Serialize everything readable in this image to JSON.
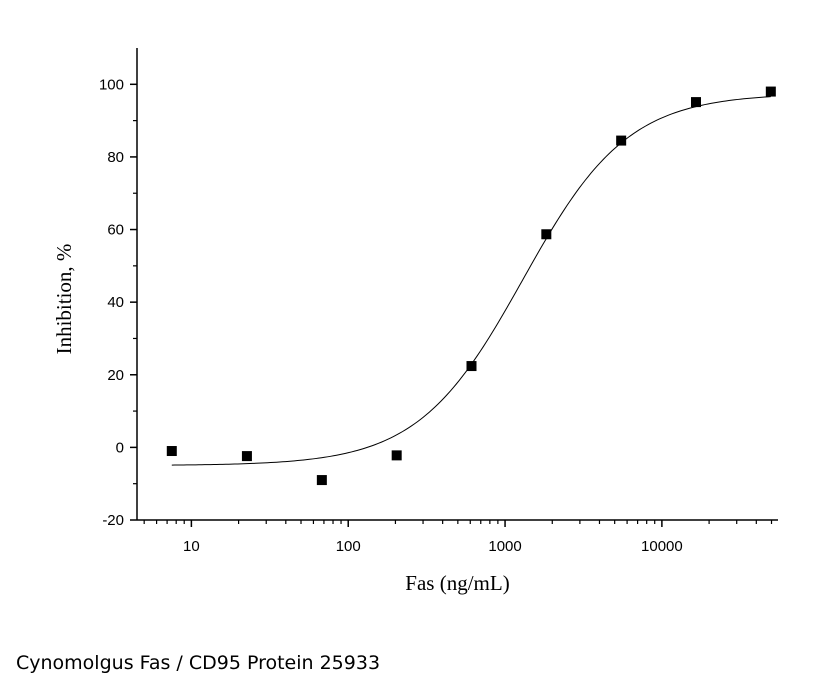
{
  "caption": "Cynomolgus Fas / CD95 Protein 25933",
  "chart_data": {
    "type": "scatter",
    "xlabel": "Fas (ng/mL)",
    "ylabel": "Inhibition, %",
    "xscale": "log",
    "xlim": [
      4.5,
      55000
    ],
    "ylim": [
      -20,
      110
    ],
    "xticks": [
      10,
      100,
      1000,
      10000
    ],
    "xtick_labels": [
      "10",
      "100",
      "1000",
      "10000"
    ],
    "yticks": [
      -20,
      0,
      20,
      40,
      60,
      80,
      100
    ],
    "ytick_labels": [
      "-20",
      "0",
      "20",
      "40",
      "60",
      "80",
      "100"
    ],
    "grid": false,
    "points": {
      "x": [
        7.5,
        22.6,
        67.9,
        203.7,
        611,
        1833,
        5500,
        16500,
        49500
      ],
      "y": [
        -1,
        -2.4,
        -9,
        -2.2,
        22.4,
        58.7,
        84.5,
        95.1,
        98
      ]
    },
    "fit": {
      "model": "4PL",
      "bottom": -5,
      "top": 97.5,
      "ec50": 1300,
      "hill": 1.3
    },
    "colors": {
      "marker": "#000000",
      "line": "#000000",
      "axis": "#000000"
    }
  }
}
